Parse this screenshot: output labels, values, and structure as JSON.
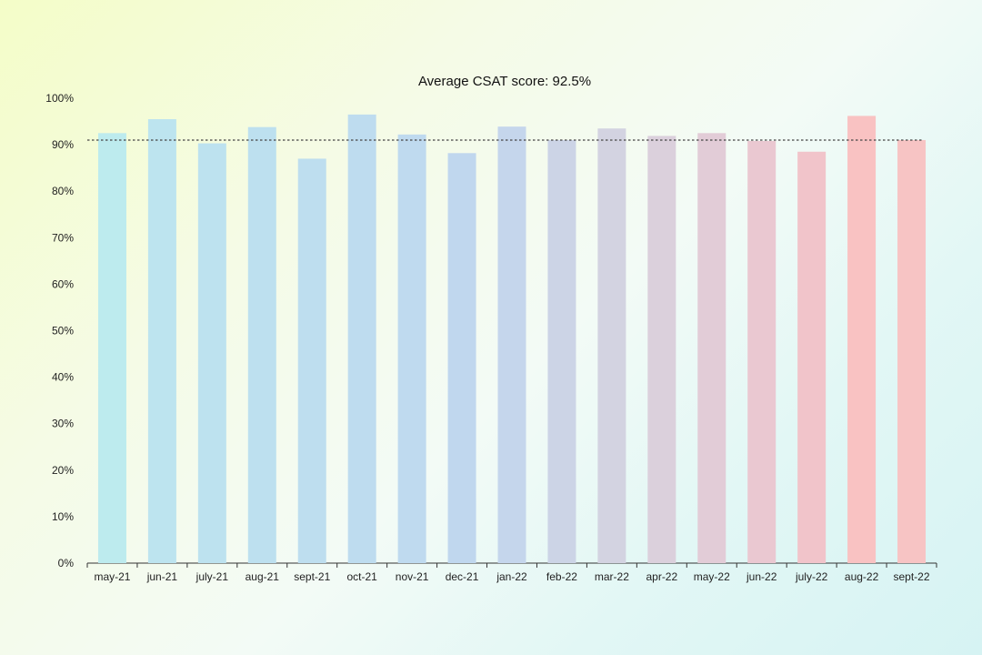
{
  "chart_data": {
    "type": "bar",
    "title": "Average CSAT score: 92.5%",
    "xlabel": "",
    "ylabel": "",
    "ylim": [
      0,
      100
    ],
    "y_ticks": [
      0,
      10,
      20,
      30,
      40,
      50,
      60,
      70,
      80,
      90,
      100
    ],
    "y_tick_labels": [
      "0%",
      "10%",
      "20%",
      "30%",
      "40%",
      "50%",
      "60%",
      "70%",
      "80%",
      "90%",
      "100%"
    ],
    "reference_line": {
      "value": 91,
      "style": "dotted"
    },
    "categories": [
      "may-21",
      "jun-21",
      "july-21",
      "aug-21",
      "sept-21",
      "oct-21",
      "nov-21",
      "dec-21",
      "jan-22",
      "feb-22",
      "mar-22",
      "apr-22",
      "may-22",
      "jun-22",
      "july-22",
      "aug-22",
      "sept-22"
    ],
    "values": [
      92.5,
      95.5,
      90.3,
      93.8,
      87.0,
      96.5,
      92.2,
      88.2,
      93.9,
      91.0,
      93.5,
      91.9,
      92.5,
      90.8,
      88.5,
      96.2,
      91.0
    ],
    "colors": [
      "#bdebee",
      "#bde4ef",
      "#bde2ef",
      "#bde0ef",
      "#bedeef",
      "#bedcef",
      "#bfdaef",
      "#c0d7ee",
      "#c5d6ec",
      "#ccd4e6",
      "#d3d3e1",
      "#dbd0dc",
      "#e2ccd7",
      "#eac8d1",
      "#f1c4ca",
      "#f9c2c2",
      "#f7c4c4"
    ]
  }
}
